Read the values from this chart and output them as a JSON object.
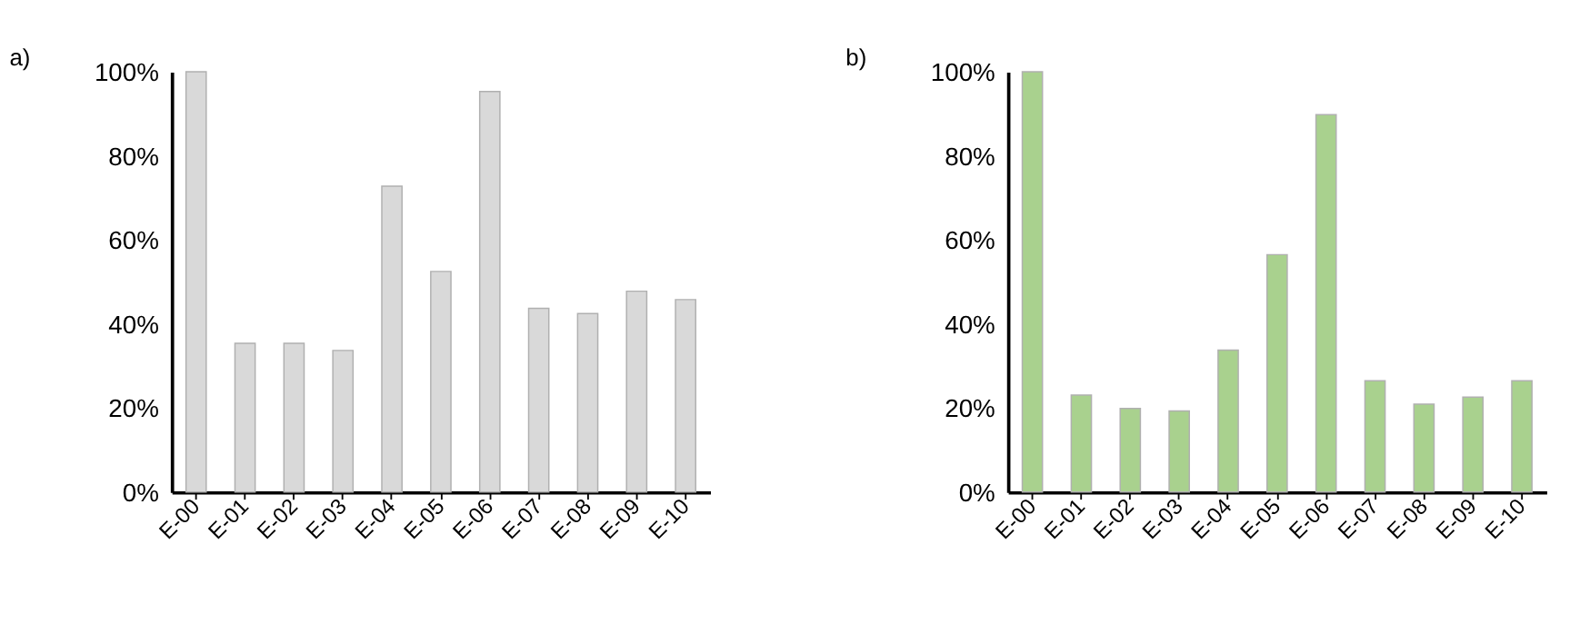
{
  "chart_data": [
    {
      "type": "bar",
      "title": "a)",
      "categories": [
        "E-00",
        "E-01",
        "E-02",
        "E-03",
        "E-04",
        "E-05",
        "E-06",
        "E-07",
        "E-08",
        "E-09",
        "E-10"
      ],
      "series": [
        {
          "color": "#d9d9d9",
          "values": [
            100,
            35.4,
            35.4,
            33.7,
            72.8,
            52.5,
            95.3,
            43.7,
            42.5,
            47.8,
            45.8
          ]
        }
      ],
      "ylim": [
        0,
        100
      ],
      "yticks": [
        {
          "value": 0,
          "label": "0%"
        },
        {
          "value": 20,
          "label": "20%"
        },
        {
          "value": 40,
          "label": "40%"
        },
        {
          "value": 60,
          "label": "60%"
        },
        {
          "value": 80,
          "label": "80%"
        },
        {
          "value": 100,
          "label": "100%"
        }
      ],
      "grid": false
    },
    {
      "type": "bar",
      "title": "b)",
      "categories": [
        "E-00",
        "E-01",
        "E-02",
        "E-03",
        "E-04",
        "E-05",
        "E-06",
        "E-07",
        "E-08",
        "E-09",
        "E-10"
      ],
      "series": [
        {
          "color": "#a9d18e",
          "values": [
            100,
            23.1,
            19.9,
            19.3,
            33.8,
            56.5,
            89.8,
            26.5,
            20.9,
            22.6,
            26.5
          ]
        }
      ],
      "ylim": [
        0,
        100
      ],
      "yticks": [
        {
          "value": 0,
          "label": "0%"
        },
        {
          "value": 20,
          "label": "20%"
        },
        {
          "value": 40,
          "label": "40%"
        },
        {
          "value": 60,
          "label": "60%"
        },
        {
          "value": 80,
          "label": "80%"
        },
        {
          "value": 100,
          "label": "100%"
        }
      ],
      "grid": false
    }
  ]
}
